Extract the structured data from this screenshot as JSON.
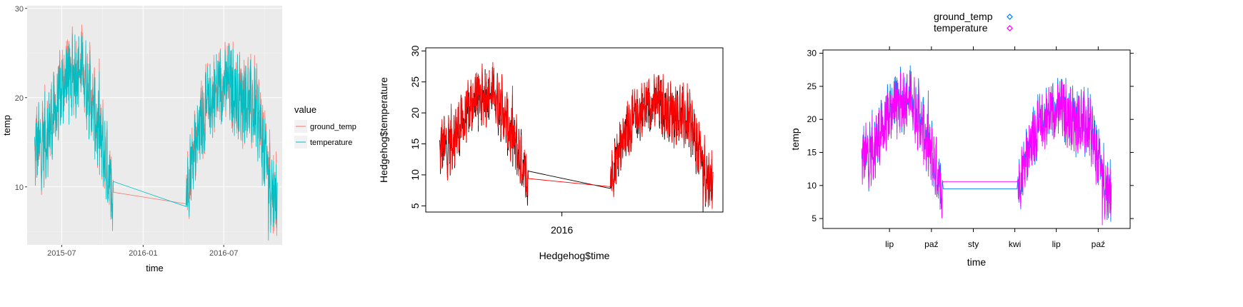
{
  "charts_common": {
    "series_names": [
      "ground_temp",
      "temperature"
    ]
  },
  "chart_data": [
    {
      "type": "line",
      "style": "ggplot",
      "xlabel": "time",
      "ylabel": "temp",
      "ylim": [
        3.5,
        30.3
      ],
      "xlim": [
        "2015-04-14",
        "2016-11-10"
      ],
      "y_ticks": [
        10,
        20,
        30
      ],
      "x_ticks": [
        {
          "date": "2015-07-01",
          "label": "2015-07"
        },
        {
          "date": "2016-01-01",
          "label": "2016-01"
        },
        {
          "date": "2016-07-01",
          "label": "2016-07"
        }
      ],
      "grid": true,
      "legend": {
        "title": "value",
        "position": "right",
        "entries": [
          "ground_temp",
          "temperature"
        ]
      },
      "series": [
        {
          "name": "ground_temp",
          "color": "#F8766D"
        },
        {
          "name": "temperature",
          "color": "#00BFC4"
        }
      ]
    },
    {
      "type": "line",
      "style": "base",
      "xlabel": "Hedgehog$time",
      "ylabel": "Hedgehog$temperature",
      "ylim": [
        4,
        30.5
      ],
      "xlim": [
        "2015-04-03",
        "2016-11-19"
      ],
      "y_ticks": [
        5,
        10,
        15,
        20,
        25,
        30
      ],
      "x_ticks": [
        {
          "date": "2016-01-01",
          "label": "2016"
        }
      ],
      "grid": false,
      "series": [
        {
          "name": "temperature",
          "color": "#000000"
        },
        {
          "name": "ground_temp",
          "color": "#FF0000"
        }
      ]
    },
    {
      "type": "line",
      "style": "lattice",
      "xlabel": "time",
      "ylabel": "temp",
      "ylim": [
        3.5,
        30.5
      ],
      "xlim": [
        "2015-02-05",
        "2016-12-10"
      ],
      "y_ticks": [
        5,
        10,
        15,
        20,
        25,
        30
      ],
      "x_ticks": [
        {
          "date": "2015-07-01",
          "label": "lip"
        },
        {
          "date": "2015-10-01",
          "label": "paź"
        },
        {
          "date": "2016-01-01",
          "label": "sty"
        },
        {
          "date": "2016-04-01",
          "label": "kwi"
        },
        {
          "date": "2016-07-01",
          "label": "lip"
        },
        {
          "date": "2016-10-01",
          "label": "paź"
        }
      ],
      "grid": false,
      "legend": {
        "position": "top",
        "entries": [
          {
            "name": "ground_temp",
            "color": "#0080FF"
          },
          {
            "name": "temperature",
            "color": "#FF00FF"
          }
        ]
      },
      "series": [
        {
          "name": "ground_temp",
          "color": "#0080FF"
        },
        {
          "name": "temperature",
          "color": "#FF00FF"
        }
      ]
    }
  ]
}
